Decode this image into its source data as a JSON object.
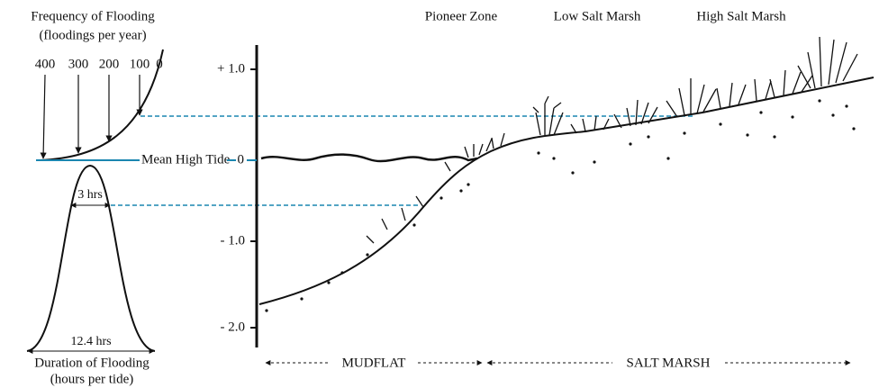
{
  "frequency": {
    "title": "Frequency of Flooding",
    "subtitle": "(floodings per year)",
    "ticks": [
      "400",
      "300",
      "200",
      "100",
      "0"
    ]
  },
  "mean_high_tide": "Mean High Tide",
  "duration": {
    "peak_label": "3 hrs",
    "base_label": "12.4 hrs",
    "title": "Duration of Flooding",
    "subtitle": "(hours per tide)"
  },
  "zones": [
    "Pioneer Zone",
    "Low Salt Marsh",
    "High Salt Marsh"
  ],
  "elevation_ticks": [
    "+ 1.0",
    "0",
    "- 1.0",
    "- 2.0"
  ],
  "regions": [
    "MUDFLAT",
    "SALT MARSH"
  ]
}
